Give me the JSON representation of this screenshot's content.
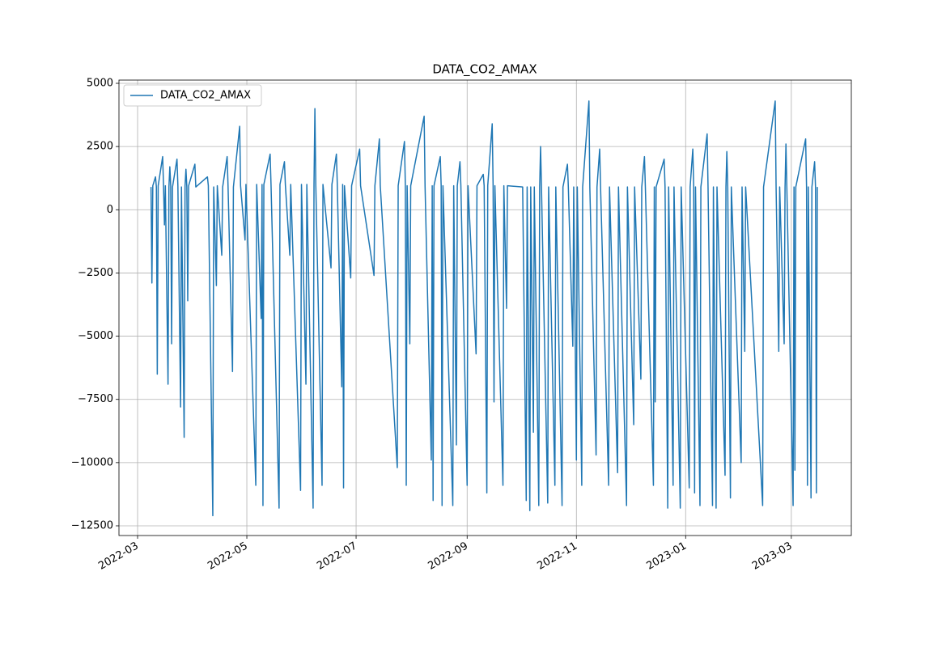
{
  "chart_data": {
    "type": "line",
    "title": "DATA_CO2_AMAX",
    "x": [
      7.5,
      8,
      8.5,
      10,
      10.5,
      11,
      11.5,
      14,
      14.5,
      15,
      15.5,
      17,
      17.5,
      18,
      18.5,
      19,
      19.5,
      22,
      22.5,
      24,
      24.5,
      26,
      26.5,
      27,
      27.5,
      28,
      28.5,
      32,
      32.5,
      39,
      39.5,
      42,
      42.5,
      44,
      44.5,
      47,
      47.5,
      50,
      50.5,
      53,
      53.5,
      57,
      57.5,
      60,
      60.5,
      66,
      66.5,
      69,
      69.5,
      70,
      70.5,
      74,
      74.5,
      79,
      79.5,
      82,
      82.5,
      85,
      85.5,
      91,
      91.5,
      94,
      94.5,
      98,
      98.5,
      99,
      99.5,
      103,
      103.5,
      108,
      108.5,
      111,
      111.5,
      114,
      114.5,
      115,
      115.5,
      119,
      119.5,
      124,
      124.5,
      132,
      132.5,
      135,
      135.5,
      145,
      145.5,
      149,
      149.5,
      150,
      150.5,
      152,
      152.5,
      160,
      160.5,
      164,
      164.5,
      165,
      165.5,
      169,
      169.5,
      170,
      170.5,
      176,
      176.5,
      178,
      178.5,
      180,
      180.5,
      184,
      184.5,
      189,
      189.5,
      193,
      193.5,
      195,
      195.5,
      198,
      198.5,
      199,
      199.5,
      204,
      204.5,
      206,
      206.5,
      215,
      217,
      217.5,
      219,
      219.5,
      221,
      221.5,
      224,
      224.5,
      225,
      225.5,
      229,
      229.5,
      233,
      233.5,
      237,
      237.5,
      240,
      240.5,
      243,
      243.5,
      245,
      245.5,
      248,
      248.5,
      252,
      252.5,
      256,
      256.5,
      258,
      258.5,
      263,
      263.5,
      268,
      268.5,
      273,
      273.5,
      277,
      277.5,
      281,
      281.5,
      283,
      283.5,
      288,
      288.5,
      289,
      289.5,
      294,
      294.5,
      296,
      296.5,
      299,
      299.5,
      303,
      303.5,
      308,
      308.5,
      310,
      310.5,
      311,
      311.5,
      314,
      314.5,
      318,
      318.5,
      321,
      321.5,
      323,
      323.5,
      328,
      328.5,
      329,
      329.5,
      331,
      331.5,
      337,
      337.5,
      339,
      339.5,
      349,
      349.5,
      356,
      356.5,
      358,
      358.5,
      361,
      361.5,
      362,
      362.5,
      366,
      366.5,
      367,
      367.5,
      373,
      373.5,
      374,
      374.5,
      376,
      376.5,
      378,
      378.5,
      379,
      379.5
    ],
    "series": [
      {
        "name": "DATA_CO2_AMAX",
        "color": "#1f77b4",
        "values": [
          900,
          -2900,
          950,
          1300,
          900,
          -6500,
          950,
          2100,
          900,
          -600,
          950,
          -6900,
          900,
          1700,
          950,
          -5300,
          900,
          2000,
          950,
          -7800,
          900,
          -9000,
          950,
          1600,
          900,
          -3600,
          950,
          1800,
          900,
          1300,
          950,
          -12100,
          900,
          -3000,
          950,
          -1800,
          900,
          2100,
          950,
          -6400,
          900,
          3300,
          950,
          -1200,
          1000,
          -10900,
          1000,
          -4300,
          1000,
          -11700,
          1000,
          2200,
          1000,
          -11800,
          1000,
          1900,
          1000,
          -1800,
          1000,
          -11100,
          1000,
          -6900,
          1000,
          -11800,
          1000,
          4000,
          1000,
          -10900,
          1000,
          -2300,
          1000,
          2200,
          1000,
          -7000,
          1000,
          -11000,
          950,
          -2700,
          950,
          2400,
          950,
          -2600,
          950,
          2800,
          950,
          -10200,
          950,
          2700,
          950,
          -10900,
          950,
          -5300,
          950,
          3700,
          950,
          -9900,
          950,
          -11500,
          950,
          2100,
          950,
          -11700,
          950,
          -11700,
          950,
          -9300,
          950,
          1900,
          950,
          -10900,
          950,
          -5700,
          950,
          1400,
          950,
          -11200,
          950,
          3400,
          950,
          -7600,
          950,
          -10900,
          950,
          -3900,
          950,
          900,
          -11500,
          900,
          -11900,
          900,
          -8800,
          900,
          -11700,
          900,
          2500,
          900,
          -11600,
          900,
          -10900,
          900,
          -11700,
          900,
          1800,
          900,
          -5400,
          900,
          -9900,
          900,
          -10900,
          900,
          4300,
          900,
          -9700,
          900,
          2400,
          900,
          -10900,
          900,
          -10400,
          900,
          -11700,
          900,
          -8500,
          900,
          -6700,
          900,
          2100,
          900,
          -10900,
          900,
          -7600,
          900,
          2000,
          900,
          -11800,
          900,
          -10900,
          900,
          -11800,
          900,
          -11000,
          900,
          2400,
          900,
          -11200,
          900,
          -11700,
          900,
          3000,
          900,
          -11700,
          900,
          -11800,
          900,
          -10500,
          900,
          2300,
          900,
          -11400,
          900,
          -10000,
          900,
          -5600,
          900,
          -11700,
          900,
          4300,
          900,
          -5600,
          900,
          -5300,
          900,
          2600,
          900,
          -11700,
          900,
          -10300,
          900,
          2800,
          900,
          -10900,
          900,
          -11400,
          900,
          1900,
          900,
          -11200,
          900
        ]
      }
    ],
    "xlim": [
      -10.4,
      398.5
    ],
    "xticks": [
      {
        "value": 0,
        "label": "2022-03"
      },
      {
        "value": 61,
        "label": "2022-05"
      },
      {
        "value": 122,
        "label": "2022-07"
      },
      {
        "value": 184,
        "label": "2022-09"
      },
      {
        "value": 245,
        "label": "2022-11"
      },
      {
        "value": 306,
        "label": "2023-01"
      },
      {
        "value": 365,
        "label": "2023-03"
      }
    ],
    "ylim": [
      -12884,
      5128
    ],
    "yticks": [
      {
        "value": -12500,
        "label": "−12500"
      },
      {
        "value": -10000,
        "label": "−10000"
      },
      {
        "value": -7500,
        "label": "−7500"
      },
      {
        "value": -5000,
        "label": "−5000"
      },
      {
        "value": -2500,
        "label": "−2500"
      },
      0,
      2500,
      5000
    ],
    "grid": true,
    "legend": "upper left"
  }
}
